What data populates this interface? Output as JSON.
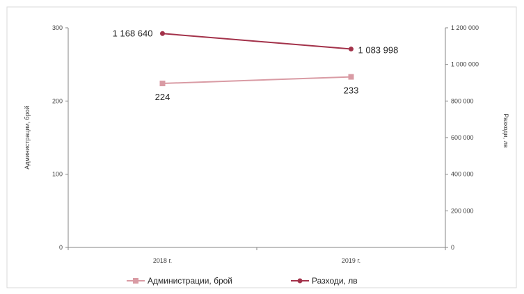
{
  "chart_data": {
    "type": "line",
    "categories": [
      "2018 г.",
      "2019 г."
    ],
    "series": [
      {
        "name": "Администрации, брой",
        "axis": "left",
        "values": [
          224,
          233
        ],
        "labels": [
          "224",
          "233"
        ],
        "color": "#d99ba4",
        "marker": "square"
      },
      {
        "name": "Разходи, лв",
        "axis": "right",
        "values": [
          1168640,
          1083998
        ],
        "labels": [
          "1 168 640",
          "1 083 998"
        ],
        "color": "#a3324a",
        "marker": "circle"
      }
    ],
    "y_left": {
      "label": "Администрации, брой",
      "ylim": [
        0,
        300
      ],
      "ticks": [
        0,
        100,
        200,
        300
      ],
      "tick_labels": [
        "0",
        "100",
        "200",
        "300"
      ]
    },
    "y_right": {
      "label": "Разходи, лв",
      "ylim": [
        0,
        1200000
      ],
      "ticks": [
        0,
        200000,
        400000,
        600000,
        800000,
        1000000,
        1200000
      ],
      "tick_labels": [
        "0",
        "200 000",
        "400 000",
        "600 000",
        "800 000",
        "1 000 000",
        "1 200 000"
      ]
    },
    "legend": "bottom",
    "grid": false
  }
}
